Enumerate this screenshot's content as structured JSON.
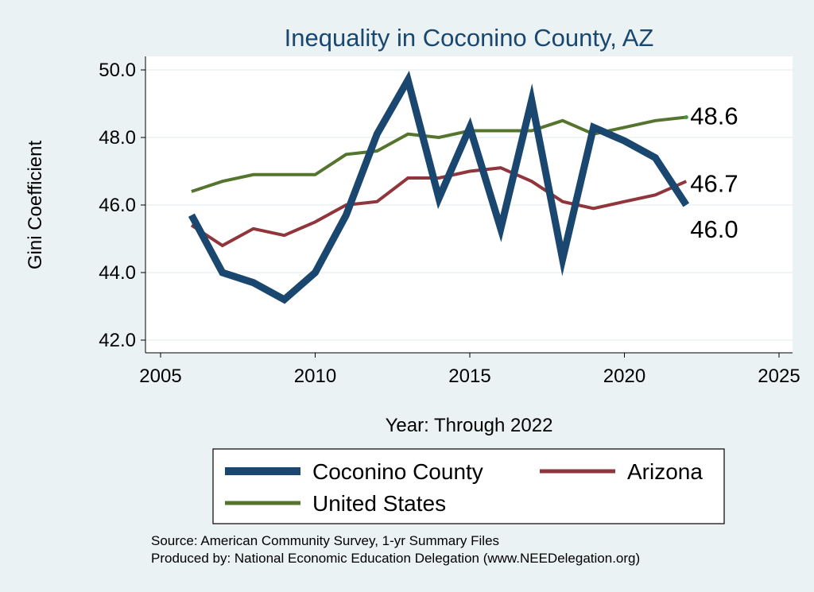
{
  "chart_data": {
    "type": "line",
    "title": "Inequality in Coconino County, AZ",
    "xlabel": "Year: Through 2022",
    "ylabel": "Gini Coefficient",
    "xlim": [
      2005,
      2025
    ],
    "ylim": [
      42,
      50
    ],
    "x_ticks": [
      2005,
      2010,
      2015,
      2020,
      2025
    ],
    "y_ticks": [
      42,
      44,
      46,
      48,
      50
    ],
    "y_tick_labels": [
      "42.0",
      "44.0",
      "46.0",
      "48.0",
      "50.0"
    ],
    "grid": true,
    "legend_position": "bottom",
    "x": [
      2006,
      2007,
      2008,
      2009,
      2010,
      2011,
      2012,
      2013,
      2014,
      2015,
      2016,
      2017,
      2018,
      2019,
      2020,
      2021,
      2022
    ],
    "series": [
      {
        "name": "Coconino County",
        "color": "#1a476f",
        "values": [
          45.7,
          44.0,
          43.7,
          43.2,
          44.0,
          45.7,
          48.1,
          49.7,
          46.2,
          48.3,
          45.3,
          49.1,
          44.4,
          48.3,
          47.9,
          47.4,
          46.0
        ],
        "end_label": "46.0"
      },
      {
        "name": "Arizona",
        "color": "#90353b",
        "values": [
          45.4,
          44.8,
          45.3,
          45.1,
          45.5,
          46.0,
          46.1,
          46.8,
          46.8,
          47.0,
          47.1,
          46.7,
          46.1,
          45.9,
          46.1,
          46.3,
          46.7
        ],
        "end_label": "46.7"
      },
      {
        "name": "United States",
        "color": "#55752f",
        "values": [
          46.4,
          46.7,
          46.9,
          46.9,
          46.9,
          47.5,
          47.6,
          48.1,
          48.0,
          48.2,
          48.2,
          48.2,
          48.5,
          48.1,
          48.3,
          48.5,
          48.6
        ],
        "end_label": "48.6"
      }
    ],
    "notes": [
      "Source: American Community Survey, 1-yr Summary Files",
      "Produced by: National Economic Education Delegation (www.NEEDelegation.org)"
    ]
  }
}
